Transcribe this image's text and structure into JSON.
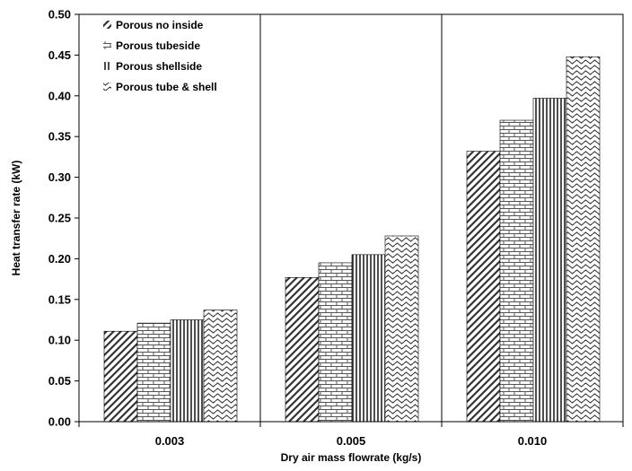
{
  "chart_data": {
    "type": "bar",
    "title": "",
    "xlabel": "Dry air mass flowrate (kg/s)",
    "ylabel": "Heat transfer rate (kW)",
    "categories": [
      "0.003",
      "0.005",
      "0.010"
    ],
    "ylim": [
      0,
      0.5
    ],
    "yticks": [
      "0.00",
      "0.05",
      "0.10",
      "0.15",
      "0.20",
      "0.25",
      "0.30",
      "0.35",
      "0.40",
      "0.45",
      "0.50"
    ],
    "grid": false,
    "legend_position": "top-left",
    "series": [
      {
        "name": "Porous no inside",
        "values": [
          0.111,
          0.177,
          0.332
        ],
        "pattern": "diagonal-hatch"
      },
      {
        "name": "Porous tubeside",
        "values": [
          0.121,
          0.195,
          0.37
        ],
        "pattern": "brick"
      },
      {
        "name": "Porous shellside",
        "values": [
          0.125,
          0.205,
          0.397
        ],
        "pattern": "vertical-lines"
      },
      {
        "name": "Porous tube & shell",
        "values": [
          0.137,
          0.228,
          0.448
        ],
        "pattern": "wave"
      }
    ]
  }
}
